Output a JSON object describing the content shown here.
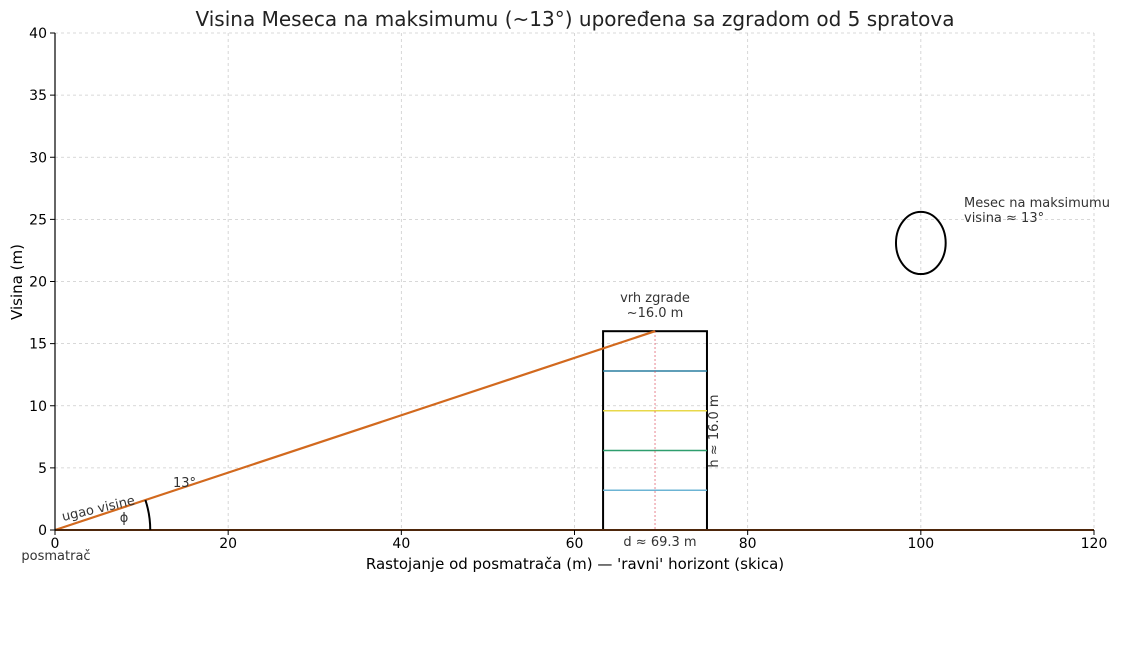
{
  "chart_data": {
    "type": "line",
    "title": "Visina Meseca na maksimumu (~13°) upoređena sa zgradom od 5 spratova",
    "xlabel": "Rastojanje od posmatrača (m) — 'ravni' horizont (skica)",
    "ylabel": "Visina (m)",
    "xlim": [
      0,
      120
    ],
    "ylim": [
      0,
      40
    ],
    "xticks": [
      0,
      20,
      40,
      60,
      80,
      100,
      120
    ],
    "yticks": [
      0,
      5,
      10,
      15,
      20,
      25,
      30,
      35,
      40
    ],
    "grid": true,
    "horizon": {
      "x": [
        0,
        120
      ],
      "y": [
        0,
        0
      ],
      "color": "#d2691e"
    },
    "sight_line": {
      "x": [
        0,
        69.3
      ],
      "y": [
        0,
        16.0
      ],
      "color": "#d2691e"
    },
    "building": {
      "x_left": 63.3,
      "x_right": 75.3,
      "height": 16.0,
      "floor_lines": [
        {
          "y": 3.2,
          "color": "#6cb4d4"
        },
        {
          "y": 6.4,
          "color": "#2e9e6e"
        },
        {
          "y": 9.6,
          "color": "#e8d84a"
        },
        {
          "y": 12.8,
          "color": "#2a7fa0"
        }
      ],
      "center_x": 69.3,
      "center_line_color": "#e05a6a"
    },
    "moon": {
      "x": 100,
      "y": 23.1,
      "radius": 2.0
    },
    "angle_arc": {
      "x": 0,
      "y": 0,
      "radius": 11,
      "degrees": 13
    },
    "annotations": {
      "observer": "posmatrač",
      "angle_label": "13°",
      "angle_desc": "ugao visine",
      "angle_symbol": "ϕ",
      "building_top": "vrh zgrade",
      "building_top_value": "~16.0 m",
      "building_height": "h ≈ 16.0 m",
      "distance": "d ≈ 69.3 m",
      "moon_label": "Mesec na maksimumu",
      "moon_altitude": "visina ≈ 13°"
    }
  }
}
